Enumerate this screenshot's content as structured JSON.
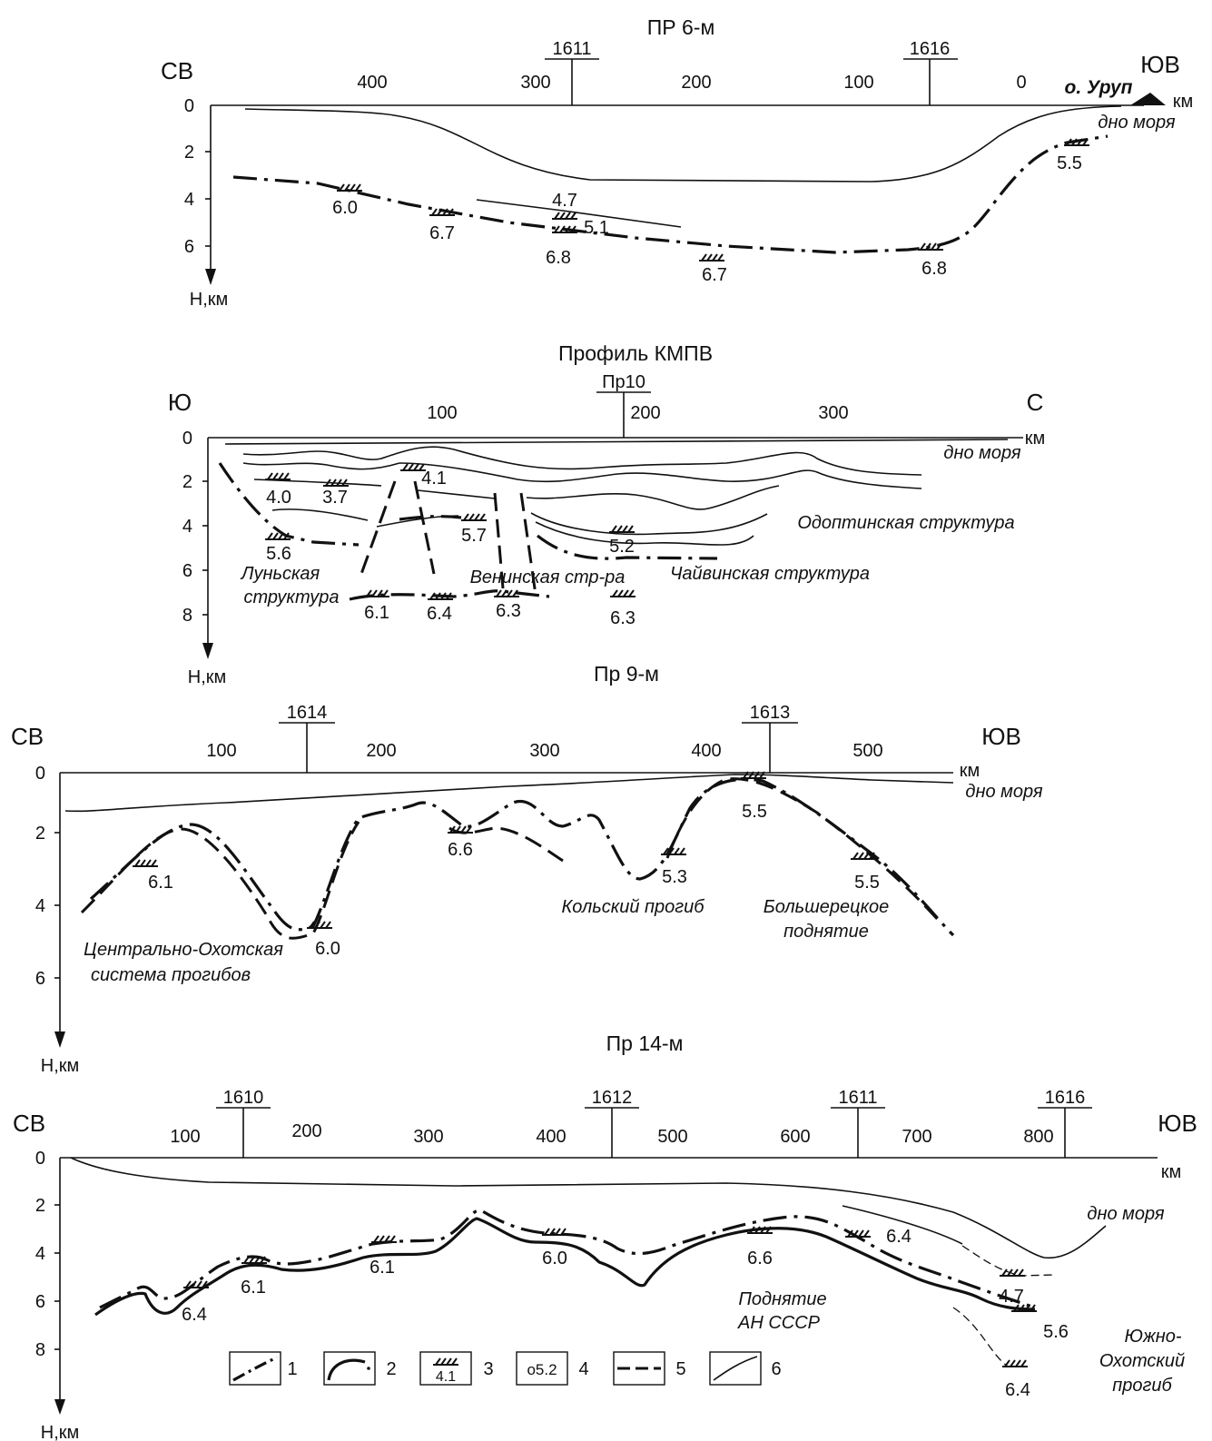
{
  "panel1": {
    "title": "ПР 6-м",
    "left_end": "СВ",
    "right_end": "ЮВ",
    "depth_label": "Н,км",
    "unit": "км",
    "x_ticks": [
      "400",
      "300",
      "200",
      "100",
      "0"
    ],
    "y_ticks": [
      "0",
      "2",
      "4",
      "6"
    ],
    "stations": [
      "1611",
      "1616"
    ],
    "island": "о. Уруп",
    "seafloor": "дно  моря",
    "velocities": [
      "6.0",
      "6.7",
      "4.7",
      "5.1",
      "6.8",
      "6.7",
      "6.8",
      "5.5"
    ]
  },
  "panel2": {
    "title": "Профиль КМПВ",
    "left_end": "Ю",
    "right_end": "С",
    "depth_label": "Н,км",
    "unit": "км",
    "x_ticks": [
      "100",
      "200",
      "300"
    ],
    "y_ticks": [
      "0",
      "2",
      "4",
      "6",
      "8"
    ],
    "stations": [
      "Пр10"
    ],
    "seafloor": "дно  моря",
    "structures": [
      "Одоптинская структура",
      "Луньская",
      "структура",
      "Венинская стр-ра",
      "Чайвинская структура"
    ],
    "velocities": [
      "4.0",
      "3.7",
      "4.1",
      "5.6",
      "5.7",
      "5.2",
      "6.1",
      "6.4",
      "6.3",
      "6.3"
    ]
  },
  "panel3": {
    "title": "Пр 9-м",
    "left_end": "СВ",
    "right_end": "ЮВ",
    "depth_label": "Н,км",
    "unit": "км",
    "x_ticks": [
      "100",
      "200",
      "300",
      "400",
      "500"
    ],
    "y_ticks": [
      "0",
      "2",
      "4",
      "6"
    ],
    "stations": [
      "1614",
      "1613"
    ],
    "seafloor": "дно  моря",
    "structures": [
      "Кольский прогиб",
      "Большерецкое",
      "поднятие",
      "Центрально-Охотская",
      "система прогибов"
    ],
    "velocities": [
      "6.1",
      "6.0",
      "6.6",
      "5.3",
      "5.5",
      "5.5"
    ]
  },
  "panel4": {
    "title": "Пр 14-м",
    "left_end": "СВ",
    "right_end": "ЮВ",
    "depth_label": "Н,км",
    "unit": "км",
    "x_ticks": [
      "100",
      "200",
      "300",
      "400",
      "500",
      "600",
      "700",
      "800"
    ],
    "y_ticks": [
      "0",
      "2",
      "4",
      "6",
      "8"
    ],
    "stations": [
      "1610",
      "1612",
      "1611",
      "1616"
    ],
    "seafloor": "дно  моря",
    "structures": [
      "Поднятие",
      "АН СССР",
      "Южно-",
      "Охотский",
      "прогиб"
    ],
    "velocities": [
      "6.4",
      "6.1",
      "6.1",
      "6.0",
      "6.6",
      "6.4",
      "4.7",
      "5.6",
      "6.4"
    ]
  },
  "legend": {
    "items": [
      "1",
      "2",
      "3",
      "4",
      "5",
      "6"
    ],
    "sample_velocity": "4.1",
    "sample_point": "о5.2"
  }
}
